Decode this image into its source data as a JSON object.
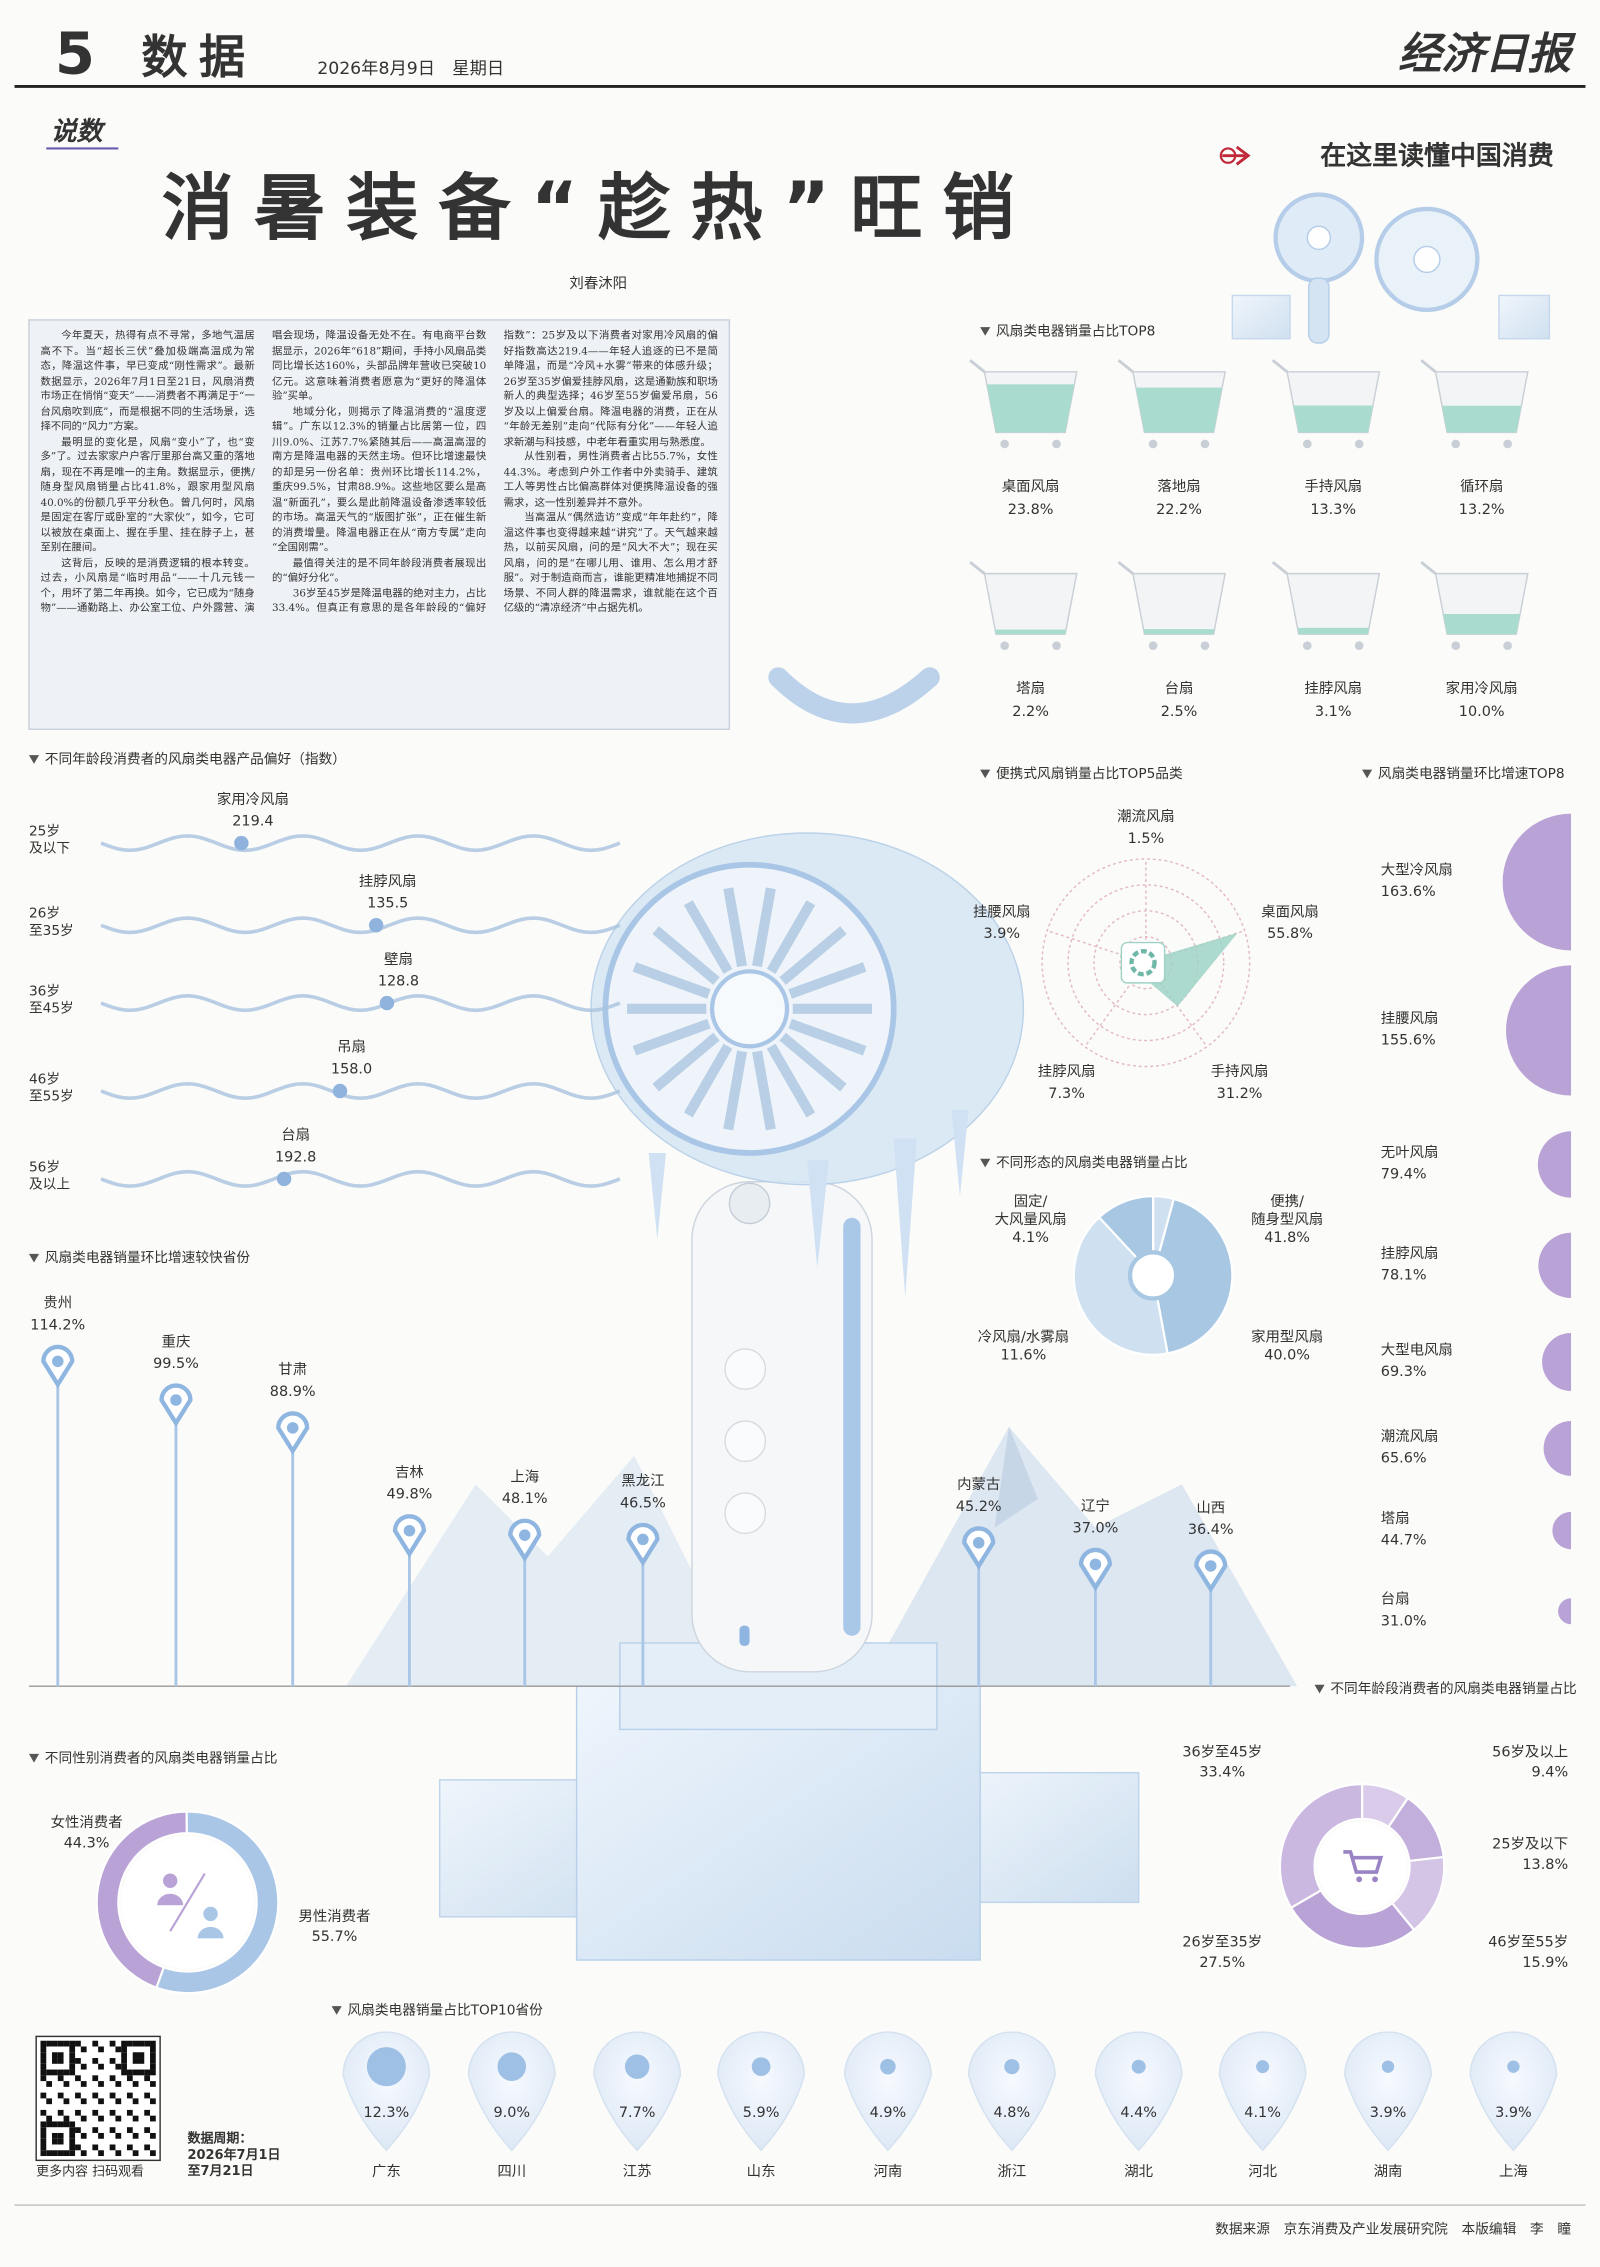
{
  "header": {
    "page_number": "5",
    "section": "数据",
    "date": "2026年8月9日　星期日",
    "newspaper": "经济日报"
  },
  "column": "说数",
  "title": "消暑装备“趁热”旺销",
  "author": "刘春沐阳",
  "badge": "在这里读懂中国消费",
  "article": {
    "paragraphs": [
      "今年夏天，热得有点不寻常，多地气温居高不下。当“超长三伏”叠加极端高温成为常态，降温这件事，早已变成“刚性需求”。最新数据显示，2026年7月1日至21日，风扇消费市场正在悄悄“变天”——消费者不再满足于“一台风扇吹到底”，而是根据不同的生活场景，选择不同的“风力”方案。",
      "最明显的变化是，风扇“变小”了，也“变多”了。过去家家户户客厅里那台高又重的落地扇，现在不再是唯一的主角。数据显示，便携/随身型风扇销量占比41.8%，跟家用型风扇40.0%的份额几乎平分秋色。曾几何时，风扇是固定在客厅或卧室的“大家伙”，如今，它可以被放在桌面上、握在手里、挂在脖子上，甚至别在腰间。",
      "这背后，反映的是消费逻辑的根本转变。过去，小风扇是“临时用品”——十几元钱一个，用坏了第二年再换。如今，它已成为“随身物”——通勤路上、办公室工位、户外露营、演唱会现场，降温设备无处不在。有电商平台数据显示，2026年“618”期间，手持小风扇品类同比增长达160%，头部品牌年营收已突破10亿元。这意味着消费者愿意为“更好的降温体验”买单。",
      "地域分化，则揭示了降温消费的“温度逻辑”。广东以12.3%的销量占比居第一位，四川9.0%、江苏7.7%紧随其后——高温高湿的南方是降温电器的天然主场。但环比增速最快的却是另一份名单：贵州环比增长114.2%，重庆99.5%，甘肃88.9%。这些地区要么是高温“新面孔”，要么是此前降温设备渗透率较低的市场。高温天气的“版图扩张”，正在催生新的消费增量。降温电器正在从“南方专属”走向“全国刚需”。",
      "最值得关注的是不同年龄段消费者展现出的“偏好分化”。",
      "36岁至45岁是降温电器的绝对主力，占比33.4%。但真正有意思的是各年龄段的“偏好指数”：25岁及以下消费者对家用冷风扇的偏好指数高达219.4——年轻人追逐的已不是简单降温，而是“冷风+水雾”带来的体感升级；26岁至35岁偏爱挂脖风扇，这是通勤族和职场新人的典型选择；46岁至55岁偏爱吊扇，56岁及以上偏爱台扇。降温电器的消费，正在从“年龄无差别”走向“代际有分化”——年轻人追求新潮与科技感，中老年看重实用与熟悉度。",
      "从性别看，男性消费者占比55.7%，女性44.3%。考虑到户外工作者中外卖骑手、建筑工人等男性占比偏高群体对便携降温设备的强需求，这一性别差异并不意外。",
      "当高温从“偶然造访”变成“年年赴约”，降温这件事也变得越来越“讲究”了。天气越来越热，以前买风扇，问的是“风大不大”；现在买风扇，问的是“在哪儿用、谁用、怎么用才舒服”。对于制造商而言，谁能更精准地捕捉不同场景、不同人群的降温需求，谁就能在这个百亿级的“清凉经济”中占据先机。"
    ]
  },
  "chart_data": [
    {
      "type": "bar",
      "title": "风扇类电器销量占比TOP8",
      "categories": [
        "桌面风扇",
        "落地扇",
        "手持风扇",
        "循环扇",
        "塔扇",
        "台扇",
        "挂脖风扇",
        "家用冷风扇"
      ],
      "values": [
        23.8,
        22.2,
        13.3,
        13.2,
        2.2,
        2.5,
        3.1,
        10
      ],
      "value_labels": [
        "23.8%",
        "22.2%",
        "13.3%",
        "13.2%",
        "2.2%",
        "2.5%",
        "3.1%",
        "10.0%"
      ],
      "color": "#a9dccf"
    },
    {
      "type": "dot",
      "title": "不同年龄段消费者的风扇类电器产品偏好（指数）",
      "categories": [
        "25岁\n及以下",
        "26岁\n至35岁",
        "36岁\n至45岁",
        "46岁\n至55岁",
        "56岁\n及以上"
      ],
      "labels": [
        "家用冷风扇",
        "挂脖风扇",
        "壁扇",
        "吊扇",
        "台扇"
      ],
      "values": [
        219.4,
        135.5,
        128.8,
        158,
        192.8
      ],
      "value_labels": [
        "219.4",
        "135.5",
        "128.8",
        "158.0",
        "192.8"
      ],
      "color": "#8fb3dc"
    },
    {
      "type": "radar",
      "title": "便携式风扇销量占比TOP5品类",
      "categories": [
        "潮流风扇",
        "桌面风扇",
        "手持风扇",
        "挂脖风扇",
        "挂腰风扇"
      ],
      "values": [
        1.5,
        55.8,
        31.2,
        7.3,
        3.9
      ],
      "value_labels": [
        "1.5%",
        "55.8%",
        "31.2%",
        "7.3%",
        "3.9%"
      ],
      "color": "#9fd3c7"
    },
    {
      "type": "bubble",
      "title": "风扇类电器销量环比增速TOP8",
      "categories": [
        "大型冷风扇",
        "挂腰风扇",
        "无叶风扇",
        "挂脖风扇",
        "大型电风扇",
        "潮流风扇",
        "塔扇",
        "台扇"
      ],
      "values": [
        163.6,
        155.6,
        79.4,
        78.1,
        69.3,
        65.6,
        44.7,
        31
      ],
      "value_labels": [
        "163.6%",
        "155.6%",
        "79.4%",
        "78.1%",
        "69.3%",
        "65.6%",
        "44.7%",
        "31.0%"
      ],
      "color": "#b9a2d6"
    },
    {
      "type": "pie",
      "title": "不同形态的风扇类电器销量占比",
      "categories": [
        "固定/\n大风量风扇",
        "便携/\n随身型风扇",
        "家用型风扇",
        "冷风扇/水雾扇"
      ],
      "values": [
        4.1,
        41.8,
        40,
        11.6
      ],
      "value_labels": [
        "4.1%",
        "41.8%",
        "40.0%",
        "11.6%"
      ],
      "colors": [
        "#cfe1f1",
        "#a7c7e3",
        "#cfe1f1",
        "#a7c7e3"
      ]
    },
    {
      "type": "lollipop",
      "title": "风扇类电器销量环比增速较快省份",
      "categories": [
        "贵州",
        "重庆",
        "甘肃",
        "吉林",
        "上海",
        "黑龙江",
        "内蒙古",
        "辽宁",
        "山西"
      ],
      "values": [
        114.2,
        99.5,
        88.9,
        49.8,
        48.1,
        46.5,
        45.2,
        37,
        36.4
      ],
      "value_labels": [
        "114.2%",
        "99.5%",
        "88.9%",
        "49.8%",
        "48.1%",
        "46.5%",
        "45.2%",
        "37.0%",
        "36.4%"
      ],
      "color": "#8fb6e0"
    },
    {
      "type": "donut",
      "title": "不同年龄段消费者的风扇类电器销量占比",
      "categories": [
        "56岁及以上",
        "25岁及以下",
        "46岁至55岁",
        "26岁至35岁",
        "36岁至45岁"
      ],
      "values": [
        9.4,
        13.8,
        15.9,
        27.5,
        33.4
      ],
      "value_labels": [
        "9.4%",
        "13.8%",
        "15.9%",
        "27.5%",
        "33.4%"
      ],
      "colors": [
        "#d9cbe9",
        "#c3afdc",
        "#d4c4e6",
        "#b9a2d6",
        "#cab8e1"
      ]
    },
    {
      "type": "donut",
      "title": "不同性别消费者的风扇类电器销量占比",
      "categories": [
        "女性消费者",
        "男性消费者"
      ],
      "values": [
        44.3,
        55.7
      ],
      "value_labels": [
        "44.3%",
        "55.7%"
      ],
      "colors": [
        "#b9a2d6",
        "#a9c6e6"
      ]
    },
    {
      "type": "bubble",
      "title": "风扇类电器销量占比TOP10省份",
      "categories": [
        "广东",
        "四川",
        "江苏",
        "山东",
        "河南",
        "浙江",
        "湖北",
        "河北",
        "湖南",
        "上海"
      ],
      "values": [
        12.3,
        9,
        7.7,
        5.9,
        4.9,
        4.8,
        4.4,
        4.1,
        3.9,
        3.9
      ],
      "value_labels": [
        "12.3%",
        "9.0%",
        "7.7%",
        "5.9%",
        "4.9%",
        "4.8%",
        "4.4%",
        "4.1%",
        "3.9%",
        "3.9%"
      ],
      "color": "#8fb6e0"
    }
  ],
  "footer": {
    "qr_caption": "更多内容 扫码观看",
    "data_period": "数据周期：\n2026年7月1日\n至7月21日",
    "credits": "数据来源　京东消费及产业发展研究院　本版编辑　李　瞳"
  }
}
